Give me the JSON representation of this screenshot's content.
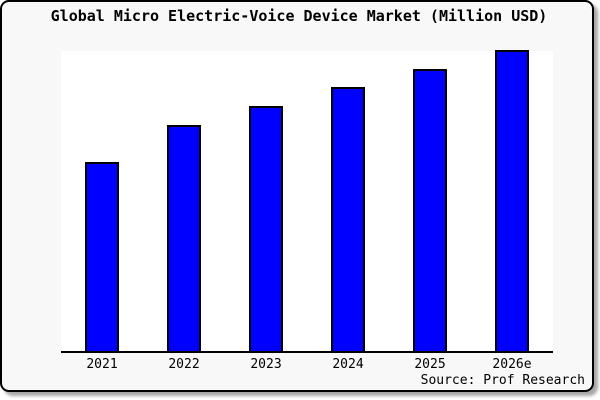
{
  "header": {
    "title": "Global Micro Electric-Voice Device Market (Million USD)"
  },
  "footer": {
    "source_credit": "Source: Prof Research"
  },
  "colors": {
    "bar_fill": "#0000ff",
    "bar_border": "#000000",
    "axis": "#000000",
    "frame_background": "#f8f8f8",
    "plot_background": "#ffffff",
    "text": "#000000"
  },
  "chart_data": {
    "type": "bar",
    "title": "Global Micro Electric-Voice Device Market (Million USD)",
    "categories": [
      "2021",
      "2022",
      "2023",
      "2024",
      "2025",
      "2026e"
    ],
    "values": [
      62.8,
      75.1,
      81.4,
      87.7,
      93.7,
      100
    ],
    "values_note": "y-axis is unlabeled in the image; values are bar heights estimated as percent of the tallest bar (2026e = 100)",
    "xlabel": "",
    "ylabel": "",
    "ylim": [
      0,
      100
    ],
    "grid": false,
    "legend": false,
    "yaxis_visible": false,
    "bar_color": "#0000ff"
  }
}
